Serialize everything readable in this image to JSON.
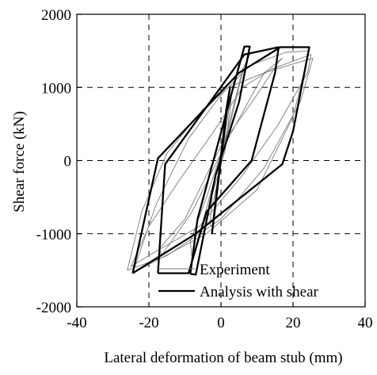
{
  "chart_data": {
    "type": "line",
    "xlabel": "Lateral deformation of beam stub (mm)",
    "ylabel": "Shear force (kN)",
    "xlim": [
      -40,
      40
    ],
    "ylim": [
      -2000,
      2000
    ],
    "x_ticks": [
      -40,
      -20,
      0,
      20,
      40
    ],
    "y_ticks": [
      -2000,
      -1000,
      0,
      1000,
      2000
    ],
    "x_tick_labels": [
      "-40",
      "-20",
      "0",
      "20",
      "40"
    ],
    "y_tick_labels": [
      "-2000",
      "-1000",
      "0",
      "1000",
      "2000"
    ],
    "grid": "dashed",
    "legend_position": "bottom-right",
    "series": [
      {
        "name": "Experiment",
        "color": "#7a7a7a",
        "style": "thin",
        "loops": [
          [
            [
              -2.5,
              -480
            ],
            [
              1.2,
              150
            ],
            [
              3,
              900
            ],
            [
              4,
              1150
            ],
            [
              2.2,
              700
            ],
            [
              -0.5,
              -200
            ],
            [
              -2.8,
              -700
            ],
            [
              -3,
              -900
            ],
            [
              -2.5,
              -480
            ]
          ],
          [
            [
              -8.5,
              -1100
            ],
            [
              -4,
              -500
            ],
            [
              2,
              400
            ],
            [
              6,
              1200
            ],
            [
              8,
              1450
            ],
            [
              6,
              1250
            ],
            [
              1.5,
              350
            ],
            [
              -4,
              -650
            ],
            [
              -8,
              -1350
            ],
            [
              -8.5,
              -1100
            ]
          ],
          [
            [
              -17,
              -1200
            ],
            [
              -10,
              -800
            ],
            [
              0,
              200
            ],
            [
              10,
              900
            ],
            [
              16,
              1350
            ],
            [
              17,
              1400
            ],
            [
              12,
              1200
            ],
            [
              2,
              300
            ],
            [
              -8,
              -700
            ],
            [
              -16.5,
              -1300
            ],
            [
              -17,
              -1200
            ]
          ],
          [
            [
              -25,
              -1450
            ],
            [
              -20,
              -900
            ],
            [
              -12,
              -300
            ],
            [
              -2,
              400
            ],
            [
              6,
              1000
            ],
            [
              14,
              1250
            ],
            [
              25,
              1450
            ],
            [
              24,
              1200
            ],
            [
              16,
              500
            ],
            [
              6,
              -200
            ],
            [
              -6,
              -900
            ],
            [
              -20,
              -1300
            ],
            [
              -25,
              -1450
            ]
          ],
          [
            [
              -26,
              -1500
            ],
            [
              -22,
              -700
            ],
            [
              -15,
              100
            ],
            [
              -5,
              700
            ],
            [
              2,
              1000
            ],
            [
              12,
              1200
            ],
            [
              20,
              1320
            ],
            [
              25.5,
              1400
            ],
            [
              22,
              800
            ],
            [
              12,
              -100
            ],
            [
              0,
              -800
            ],
            [
              -15,
              -1300
            ],
            [
              -26,
              -1500
            ]
          ],
          [
            [
              -24.5,
              -1540
            ],
            [
              -18,
              -600
            ],
            [
              -9,
              300
            ],
            [
              0,
              900
            ],
            [
              8,
              1300
            ],
            [
              18,
              1480
            ],
            [
              24.5,
              1500
            ],
            [
              20,
              600
            ],
            [
              10,
              -400
            ],
            [
              -4,
              -1000
            ],
            [
              -24.5,
              -1540
            ]
          ]
        ]
      },
      {
        "name": "Analysis with shear",
        "color": "#000000",
        "style": "thick",
        "loops": [
          [
            [
              -2.5,
              -1000
            ],
            [
              -1.5,
              -560
            ],
            [
              1.5,
              700
            ],
            [
              2.5,
              1000
            ],
            [
              1.8,
              750
            ],
            [
              -1,
              -400
            ],
            [
              -2.5,
              -1000
            ]
          ],
          [
            [
              -8.5,
              -1550
            ],
            [
              -6.5,
              -800
            ],
            [
              4.5,
              1200
            ],
            [
              6.5,
              1560
            ],
            [
              8,
              1560
            ],
            [
              5,
              800
            ],
            [
              -1.5,
              -200
            ],
            [
              -7,
              -1560
            ],
            [
              -8.5,
              -1550
            ]
          ],
          [
            [
              -17.5,
              -1540
            ],
            [
              -15.5,
              -50
            ],
            [
              6.5,
              1450
            ],
            [
              16,
              1550
            ],
            [
              15,
              1200
            ],
            [
              8.5,
              0
            ],
            [
              -4,
              -700
            ],
            [
              -9,
              -1540
            ],
            [
              -17.5,
              -1540
            ]
          ],
          [
            [
              -24.5,
              -1540
            ],
            [
              -17.5,
              30
            ],
            [
              5,
              1200
            ],
            [
              16.5,
              1550
            ],
            [
              24.5,
              1550
            ],
            [
              20,
              400
            ],
            [
              17,
              -50
            ],
            [
              -7,
              -1000
            ],
            [
              -24.5,
              -1540
            ]
          ]
        ]
      }
    ]
  }
}
